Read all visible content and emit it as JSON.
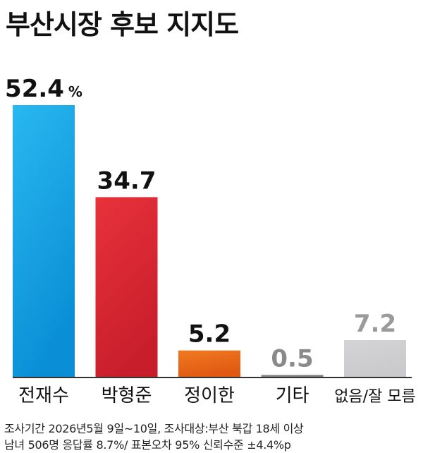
{
  "chart_data": {
    "type": "bar",
    "title": "부산시장 후보 지지도",
    "categories": [
      "전재수",
      "박형준",
      "정이한",
      "기타",
      "없음/잘 모름"
    ],
    "values": [
      52.4,
      34.7,
      5.2,
      0.5,
      7.2
    ],
    "value_labels": [
      "52.4",
      "34.7",
      "5.2",
      "0.5",
      "7.2"
    ],
    "unit": "%",
    "ylim": [
      0,
      52.4
    ],
    "grid": false,
    "legend": "none",
    "colors": {
      "bars_top": [
        "#29b8f0",
        "#e8323a",
        "#f07a20",
        "#8e8e8e",
        "#d4d4d6"
      ],
      "bars_bottom": [
        "#0a8fd6",
        "#c81e2c",
        "#e05812",
        "#7a7a7a",
        "#cacacc"
      ],
      "value_labels": [
        "#111111",
        "#111111",
        "#111111",
        "#8a8a8a",
        "#9a9a9a"
      ],
      "baseline": "#333333"
    }
  },
  "footnote": {
    "line1": "조사기간 2026년5월 9일~10일, 조사대상:부산 북갑 18세 이상",
    "line2": "남녀 506명   응답률 8.7%/ 표본오차 95% 신뢰수준 ±4.4%p"
  }
}
